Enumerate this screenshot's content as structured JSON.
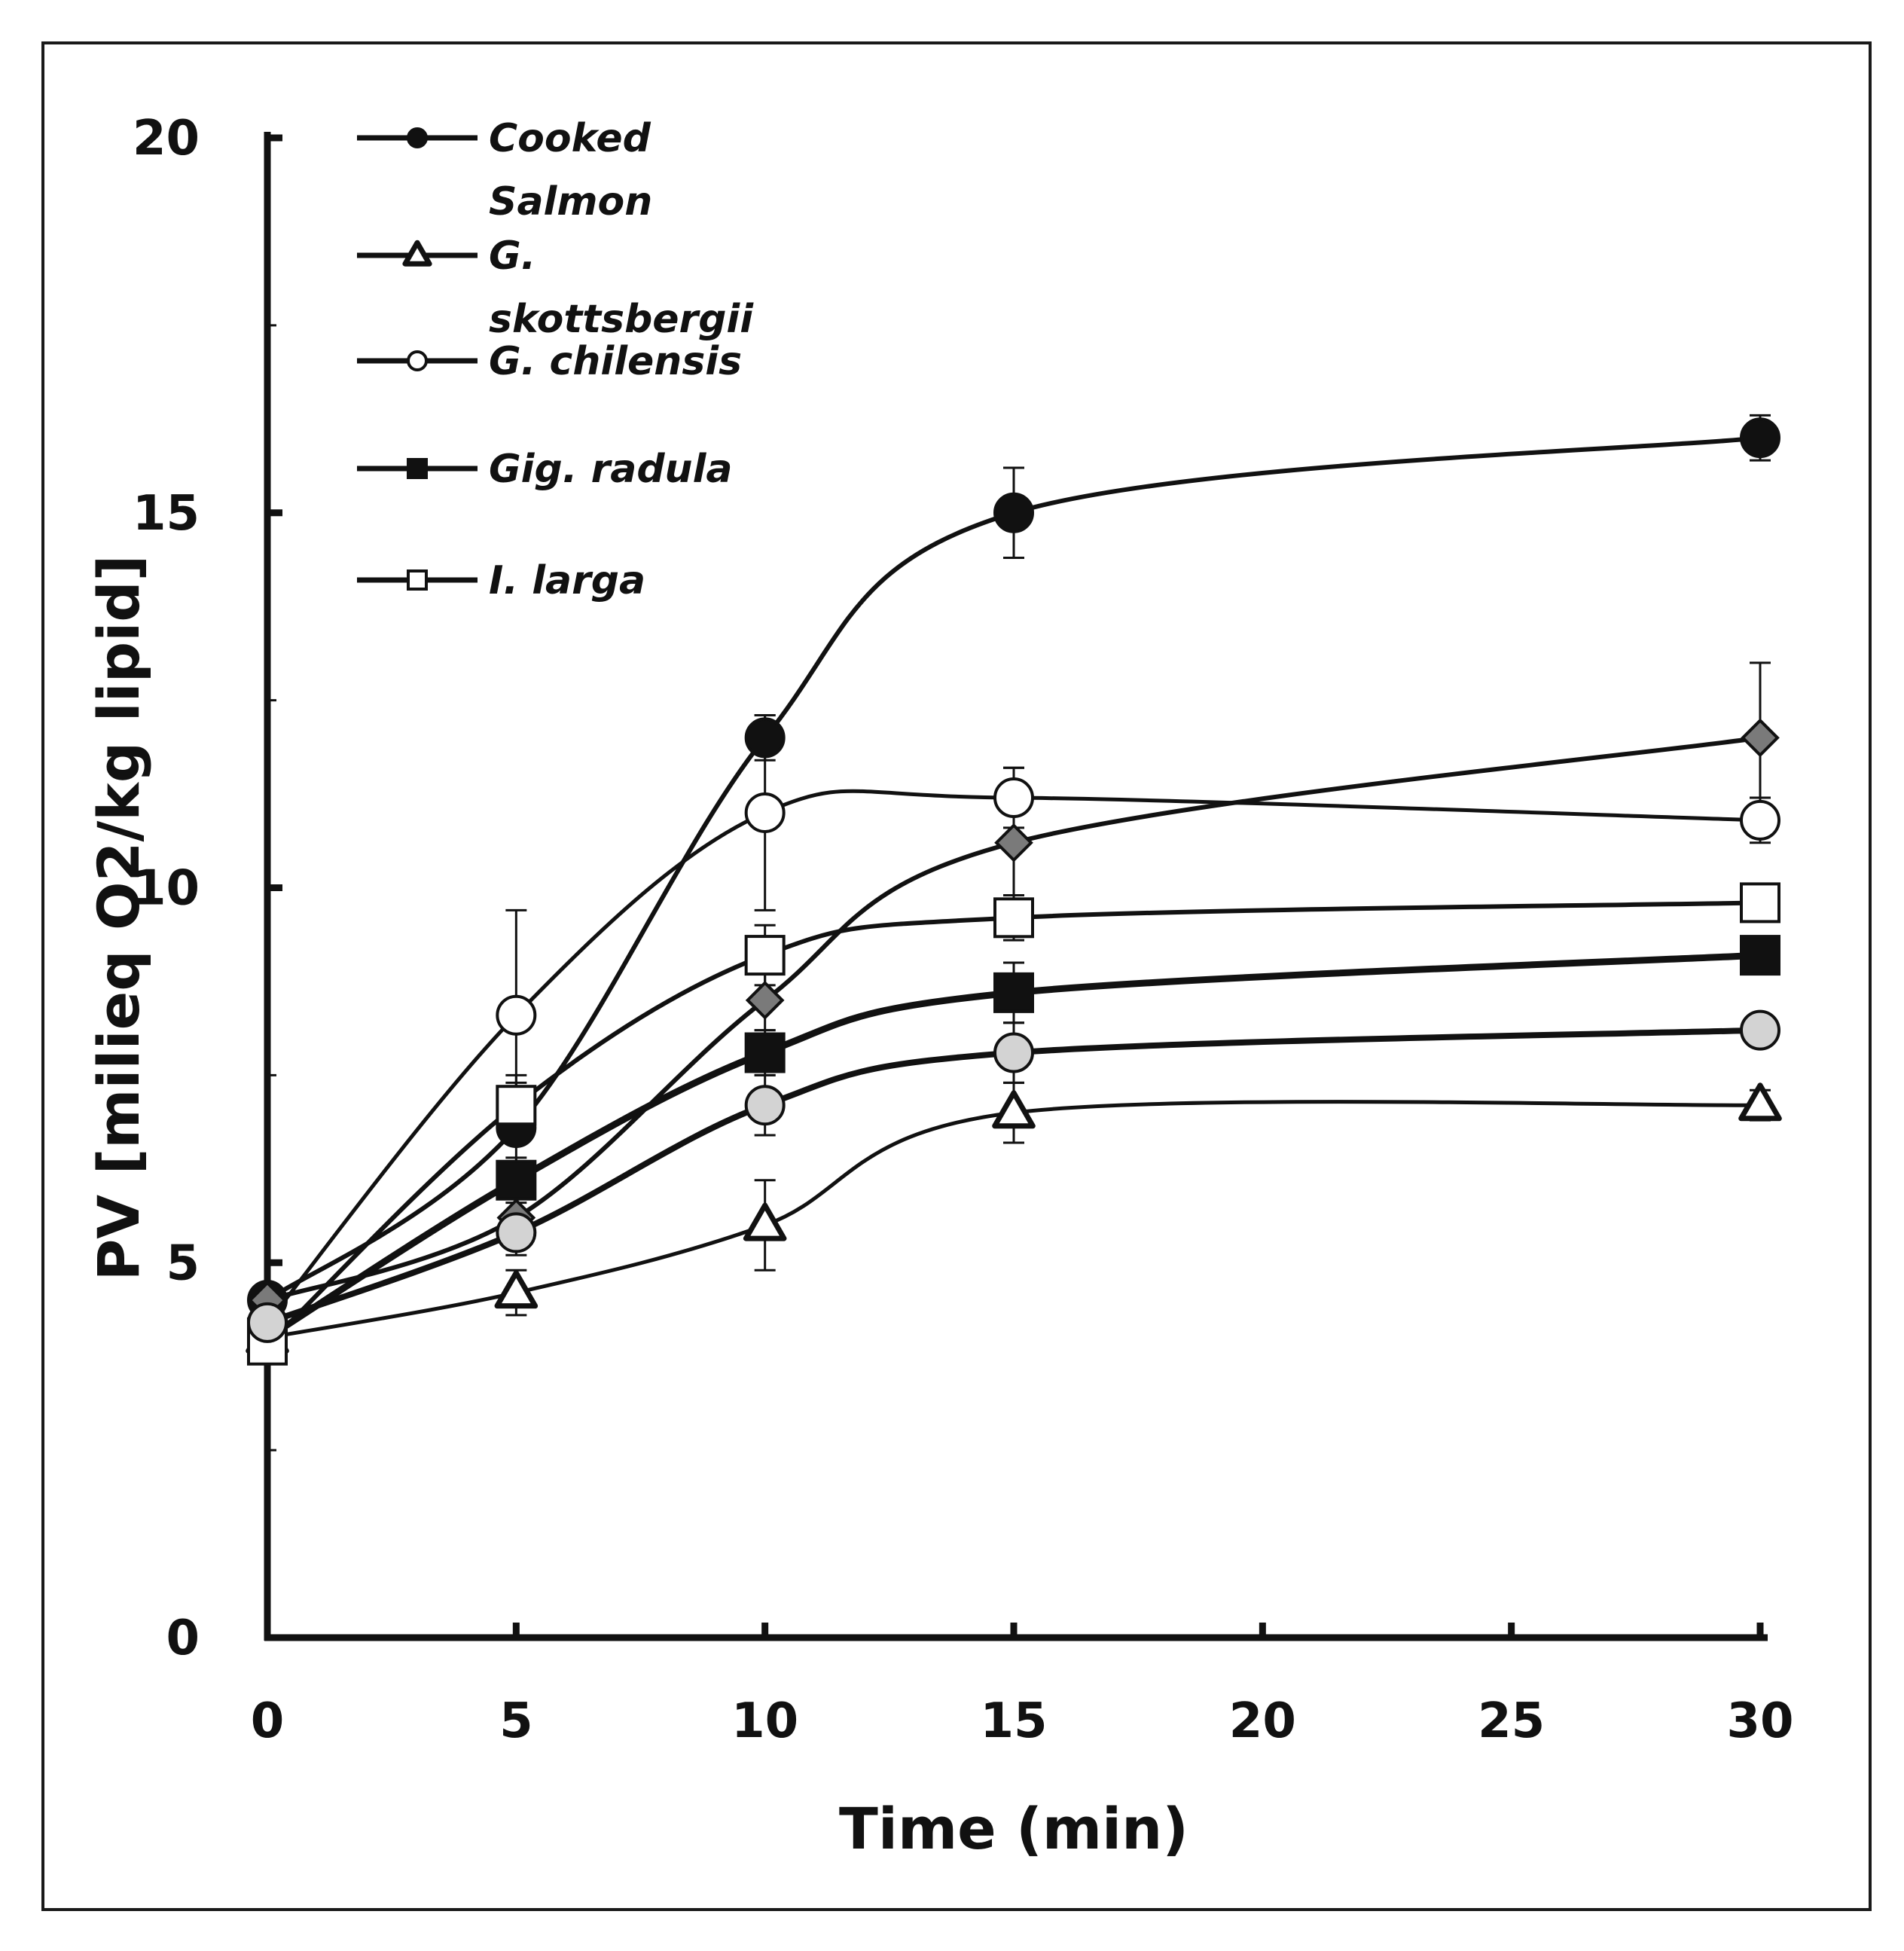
{
  "chart_data": {
    "type": "line",
    "title": "",
    "xlabel": "Time (min)",
    "ylabel": "PV [milieq O2/kg lipid]",
    "x": [
      0,
      5,
      10,
      15,
      30
    ],
    "xlim": [
      0,
      30
    ],
    "ylim": [
      0,
      20
    ],
    "x_ticks": [
      0,
      5,
      10,
      15,
      20,
      25,
      30
    ],
    "x_tick_labels": [
      "0",
      "5",
      "10",
      "15",
      "20",
      "25",
      "30"
    ],
    "y_ticks": [
      0,
      5,
      10,
      15,
      20
    ],
    "y_tick_labels": [
      "0",
      "5",
      "10",
      "15",
      "20"
    ],
    "grid": false,
    "legend_position": "top-left",
    "series": [
      {
        "name": "Cooked Salmon",
        "legend_lines": [
          "Cooked",
          "Salmon"
        ],
        "marker": "circle",
        "marker_fill": "#111111",
        "values": [
          4.5,
          6.8,
          12.0,
          15.0,
          16.0
        ],
        "errors": [
          0.2,
          0.6,
          0.3,
          0.6,
          0.3
        ]
      },
      {
        "name": "G. skottsbergii",
        "legend_lines": [
          "G.",
          "skottsbergii"
        ],
        "marker": "triangle",
        "marker_fill": "#ffffff",
        "values": [
          4.0,
          4.6,
          5.5,
          7.0,
          7.1
        ],
        "errors": [
          0.2,
          0.3,
          0.6,
          0.4,
          0.2
        ]
      },
      {
        "name": "G. chilensis",
        "legend_lines": [
          "G. chilensis"
        ],
        "marker": "circle",
        "marker_fill": "#ffffff",
        "values": [
          4.2,
          8.3,
          11.0,
          11.2,
          10.9
        ],
        "errors": [
          0.2,
          1.4,
          1.3,
          0.4,
          0.3
        ]
      },
      {
        "name": "Gig. radula",
        "legend_lines": [
          "Gig. radula"
        ],
        "marker": "square",
        "marker_fill": "#111111",
        "values": [
          4.0,
          6.1,
          7.8,
          8.6,
          9.1
        ],
        "errors": [
          0.2,
          0.3,
          0.3,
          0.4,
          0.2
        ]
      },
      {
        "name": "I. larga",
        "legend_lines": [
          "I. larga"
        ],
        "marker": "square",
        "marker_fill": "#ffffff",
        "values": [
          3.9,
          7.1,
          9.1,
          9.6,
          9.8
        ],
        "errors": [
          0.2,
          0.4,
          0.4,
          0.3,
          0.2
        ]
      },
      {
        "name": "",
        "legend_lines": [],
        "marker": "diamond",
        "marker_fill": "#7a7a7a",
        "values": [
          4.5,
          5.6,
          8.5,
          10.6,
          12.0
        ],
        "errors": [
          0.2,
          0.3,
          0.4,
          1.0,
          1.0
        ]
      },
      {
        "name": "",
        "legend_lines": [],
        "marker": "circle",
        "marker_fill": "#d3d3d3",
        "values": [
          4.2,
          5.4,
          7.1,
          7.8,
          8.1
        ],
        "errors": [
          0.2,
          0.3,
          0.4,
          0.4,
          0.2
        ]
      }
    ]
  }
}
